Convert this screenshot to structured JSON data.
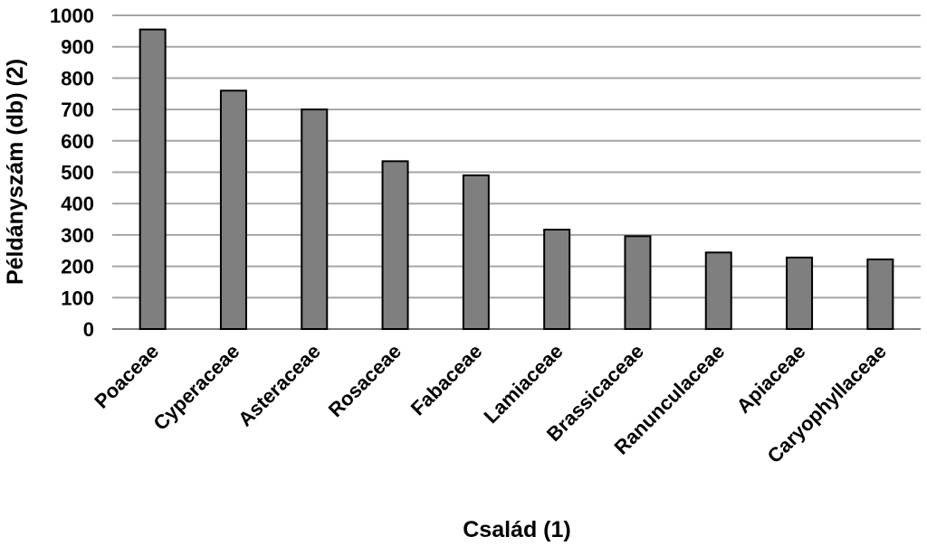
{
  "chart_data": {
    "type": "bar",
    "categories": [
      "Poaceae",
      "Cyperaceae",
      "Asteraceae",
      "Rosaceae",
      "Fabaceae",
      "Lamiaceae",
      "Brassicaceae",
      "Ranunculaceae",
      "Apiaceae",
      "Caryophyllaceae"
    ],
    "values": [
      955,
      760,
      700,
      535,
      490,
      317,
      296,
      244,
      228,
      222
    ],
    "xlabel": "Család (1)",
    "ylabel": "Példányszám (db) (2)",
    "ylim": [
      0,
      1000
    ],
    "yticks": [
      "0",
      "100",
      "200",
      "300",
      "400",
      "500",
      "600",
      "700",
      "800",
      "900",
      "1000"
    ],
    "grid": true,
    "legend": "none",
    "colors": {
      "bar": "#7f7f7f",
      "bar_border": "#000000",
      "grid": "#a6a6a6"
    }
  }
}
